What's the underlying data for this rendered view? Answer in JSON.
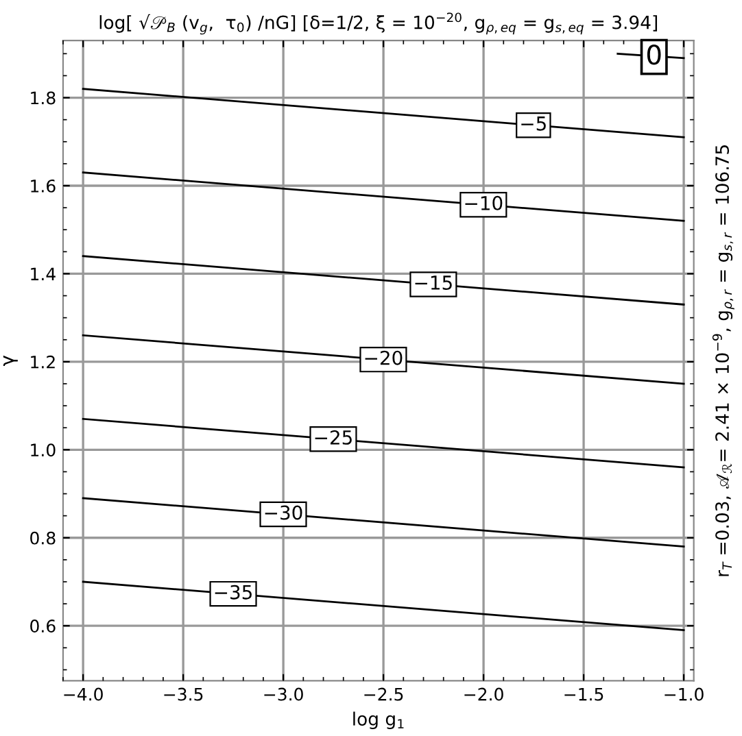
{
  "chart_data": {
    "type": "line",
    "title": "log[ √𝒫$_{B}$ (v$_{g}$,  τ$_{0}$) /nG] [δ=1/2, ξ = 10$^{−20}$, g$_{ρ,eq}$ = g$_{s,eq}$ = 3.94]",
    "xlabel": "log g$_{1}$",
    "ylabel": "γ",
    "annotations": [
      "r$_{T}$ =0.03, 𝒜$_{ℛ}$= 2.41 × 10$^{−9}$, g$_{ρ,r}$ = g$_{s,r}$ = 106.75"
    ],
    "series": [
      {
        "name": "0",
        "color": "#000000",
        "x": [
          -1.33,
          -1
        ],
        "values": [
          1.9,
          1.89
        ]
      },
      {
        "name": "−5",
        "color": "#000000",
        "x": [
          -4,
          -1
        ],
        "values": [
          1.82,
          1.71
        ]
      },
      {
        "name": "−10",
        "color": "#000000",
        "x": [
          -4,
          -1
        ],
        "values": [
          1.63,
          1.52
        ]
      },
      {
        "name": "−15",
        "color": "#000000",
        "x": [
          -4,
          -1
        ],
        "values": [
          1.44,
          1.33
        ]
      },
      {
        "name": "−20",
        "color": "#000000",
        "x": [
          -4,
          -1
        ],
        "values": [
          1.26,
          1.15
        ]
      },
      {
        "name": "−25",
        "color": "#000000",
        "x": [
          -4,
          -1
        ],
        "values": [
          1.07,
          0.96
        ]
      },
      {
        "name": "−30",
        "color": "#000000",
        "x": [
          -4,
          -1
        ],
        "values": [
          0.89,
          0.78
        ]
      },
      {
        "name": "−35",
        "color": "#000000",
        "x": [
          -4,
          -1
        ],
        "values": [
          0.7,
          0.59
        ]
      }
    ],
    "xlim": [
      -4.1,
      -0.95
    ],
    "ylim": [
      0.475,
      1.93
    ],
    "xticks": [
      {
        "value": -4,
        "label": "−4.0"
      },
      {
        "value": -3.5,
        "label": "−3.5"
      },
      {
        "value": -3,
        "label": "−3.0"
      },
      {
        "value": -2.5,
        "label": "−2.5"
      },
      {
        "value": -2,
        "label": "−2.0"
      },
      {
        "value": -1.5,
        "label": "−1.5"
      },
      {
        "value": -1,
        "label": "−1.0"
      }
    ],
    "yticks": [
      {
        "value": 0.6,
        "label": "0.6"
      },
      {
        "value": 0.8,
        "label": "0.8"
      },
      {
        "value": 1.0,
        "label": "1.0"
      },
      {
        "value": 1.2,
        "label": "1.2"
      },
      {
        "value": 1.4,
        "label": "1.4"
      },
      {
        "value": 1.6,
        "label": "1.6"
      },
      {
        "value": 1.8,
        "label": "1.8"
      }
    ],
    "grid": true
  }
}
